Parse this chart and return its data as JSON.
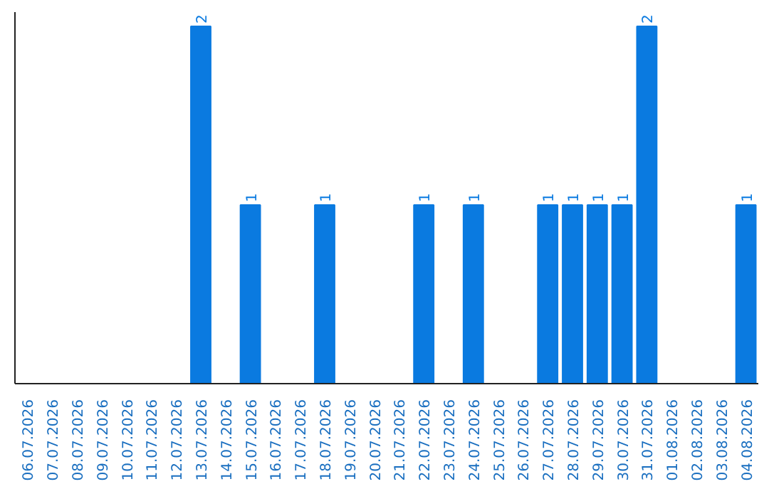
{
  "chart_data": {
    "type": "bar",
    "categories": [
      "06.07.2026",
      "07.07.2026",
      "08.07.2026",
      "09.07.2026",
      "10.07.2026",
      "11.07.2026",
      "12.07.2026",
      "13.07.2026",
      "14.07.2026",
      "15.07.2026",
      "16.07.2026",
      "17.07.2026",
      "18.07.2026",
      "19.07.2026",
      "20.07.2026",
      "21.07.2026",
      "22.07.2026",
      "23.07.2026",
      "24.07.2026",
      "25.07.2026",
      "26.07.2026",
      "27.07.2026",
      "28.07.2026",
      "29.07.2026",
      "30.07.2026",
      "31.07.2026",
      "01.08.2026",
      "02.08.2026",
      "03.08.2026",
      "04.08.2026"
    ],
    "values": [
      null,
      null,
      null,
      null,
      null,
      null,
      null,
      2,
      null,
      1,
      null,
      null,
      1,
      null,
      null,
      null,
      1,
      null,
      1,
      null,
      null,
      1,
      1,
      1,
      1,
      2,
      null,
      null,
      null,
      1
    ],
    "color": "#0a7ae0",
    "data_labels": true,
    "grid": false,
    "tick_labels": "x"
  }
}
